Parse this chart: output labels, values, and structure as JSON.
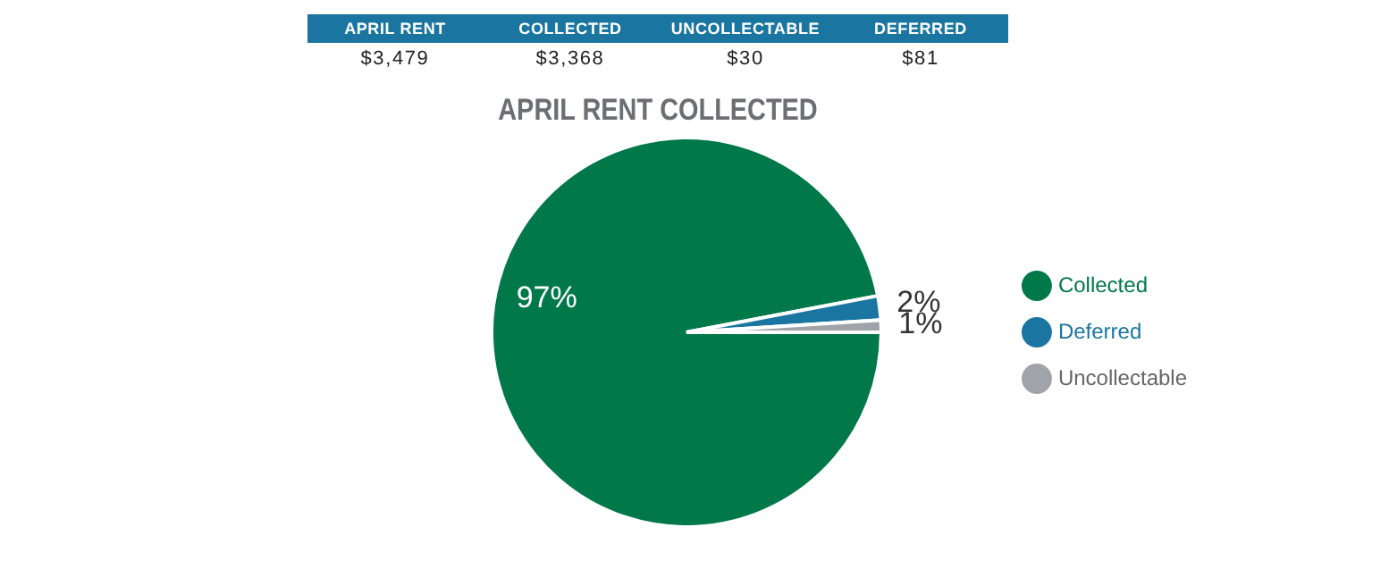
{
  "chart_data": {
    "type": "pie",
    "title": "APRIL RENT COLLECTED",
    "categories": [
      "Collected",
      "Deferred",
      "Uncollectable"
    ],
    "values": [
      97,
      2,
      1
    ],
    "colors": [
      "#00784a",
      "#1a76a0",
      "#a0a4aa"
    ],
    "value_labels": [
      "97%",
      "2%",
      "1%"
    ],
    "legend": "right",
    "annotations": [
      "APRIL RENT",
      "COLLECTED",
      "UNCOLLECTABLE",
      "DEFERRED",
      "$3,479",
      "$3,368",
      "$30",
      "$81"
    ]
  }
}
